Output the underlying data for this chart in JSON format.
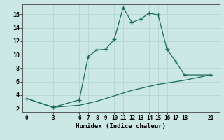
{
  "xlabel": "Humidex (Indice chaleur)",
  "bg_color": "#cce8e4",
  "line_color": "#1a6b60",
  "grid_color": "#b8d8d4",
  "line1_x": [
    0,
    3,
    6,
    7,
    8,
    9,
    10,
    11,
    12,
    13,
    14,
    15,
    16,
    17,
    18,
    21
  ],
  "line1_y": [
    3.5,
    2.2,
    3.3,
    9.7,
    10.7,
    10.8,
    12.3,
    17.0,
    14.8,
    15.3,
    16.2,
    15.9,
    10.8,
    9.0,
    7.0,
    7.0
  ],
  "line2_x": [
    0,
    3,
    6,
    7,
    8,
    9,
    10,
    11,
    12,
    13,
    14,
    15,
    16,
    17,
    18,
    21
  ],
  "line2_y": [
    3.5,
    2.2,
    2.5,
    2.8,
    3.1,
    3.5,
    3.9,
    4.3,
    4.7,
    5.0,
    5.3,
    5.6,
    5.8,
    6.0,
    6.2,
    7.0
  ],
  "xticks": [
    0,
    3,
    6,
    7,
    8,
    9,
    10,
    11,
    12,
    13,
    14,
    15,
    16,
    17,
    18,
    21
  ],
  "yticks": [
    2,
    4,
    6,
    8,
    10,
    12,
    14,
    16
  ],
  "ylim": [
    1.5,
    17.5
  ],
  "xlim": [
    -0.5,
    22.0
  ]
}
